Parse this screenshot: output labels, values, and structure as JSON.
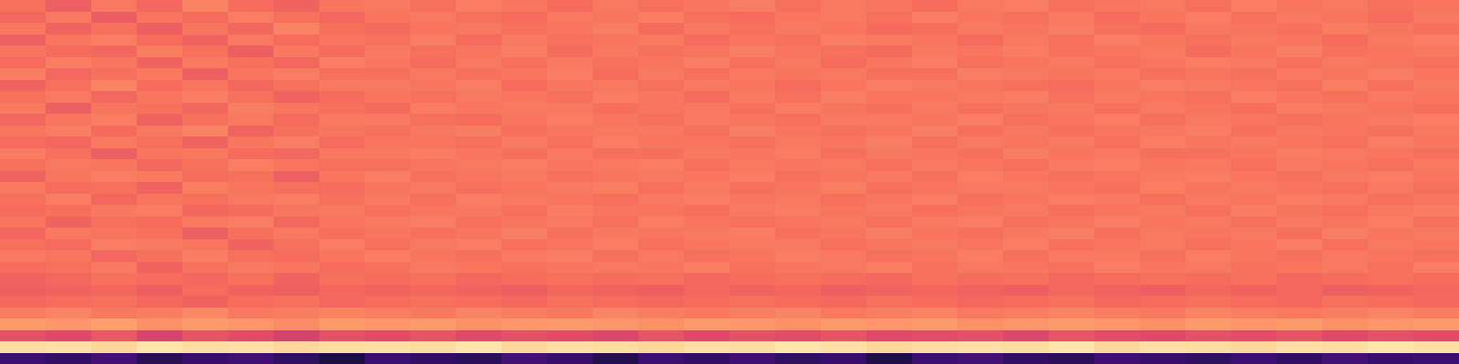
{
  "chart_data": {
    "type": "heatmap",
    "tick_labels": false,
    "zlim": [
      0,
      100
    ],
    "cells": [
      [
        70,
        66,
        72,
        68,
        74,
        69,
        67,
        71,
        72,
        70,
        73,
        71,
        69,
        72,
        70,
        71,
        73,
        70,
        72,
        71,
        69,
        72,
        73,
        70,
        71,
        72,
        70,
        73,
        71,
        72,
        70,
        71
      ],
      [
        68,
        72,
        65,
        71,
        69,
        73,
        70,
        68,
        71,
        72,
        70,
        69,
        72,
        71,
        73,
        70,
        69,
        71,
        72,
        70,
        73,
        71,
        70,
        72,
        69,
        71,
        73,
        70,
        72,
        71,
        69,
        72
      ],
      [
        72,
        67,
        70,
        66,
        71,
        68,
        74,
        70,
        69,
        71,
        72,
        70,
        71,
        73,
        69,
        72,
        70,
        72,
        71,
        69,
        70,
        72,
        71,
        73,
        70,
        69,
        72,
        71,
        70,
        73,
        71,
        70
      ],
      [
        66,
        71,
        73,
        69,
        67,
        72,
        69,
        71,
        70,
        73,
        69,
        72,
        70,
        71,
        72,
        69,
        71,
        70,
        73,
        72,
        71,
        69,
        72,
        70,
        73,
        71,
        70,
        72,
        71,
        69,
        72,
        73
      ],
      [
        71,
        69,
        68,
        73,
        70,
        66,
        72,
        69,
        72,
        70,
        71,
        73,
        69,
        72,
        70,
        71,
        73,
        71,
        70,
        69,
        72,
        71,
        73,
        70,
        71,
        72,
        69,
        71,
        73,
        70,
        71,
        72
      ],
      [
        69,
        73,
        71,
        67,
        72,
        70,
        68,
        73,
        71,
        69,
        72,
        70,
        72,
        70,
        71,
        73,
        70,
        72,
        69,
        71,
        73,
        70,
        71,
        72,
        70,
        71,
        73,
        72,
        70,
        72,
        71,
        70
      ],
      [
        73,
        68,
        70,
        72,
        66,
        71,
        73,
        70,
        70,
        72,
        70,
        71,
        73,
        69,
        72,
        70,
        72,
        71,
        72,
        70,
        70,
        73,
        72,
        71,
        72,
        70,
        71,
        70,
        72,
        71,
        73,
        71
      ],
      [
        67,
        70,
        74,
        69,
        71,
        68,
        70,
        72,
        72,
        71,
        73,
        69,
        71,
        72,
        70,
        72,
        71,
        69,
        71,
        73,
        72,
        71,
        70,
        69,
        71,
        73,
        72,
        71,
        70,
        73,
        70,
        72
      ],
      [
        70,
        72,
        68,
        71,
        73,
        70,
        67,
        69,
        71,
        70,
        72,
        71,
        70,
        73,
        71,
        69,
        72,
        70,
        73,
        71,
        71,
        72,
        73,
        70,
        72,
        71,
        70,
        73,
        71,
        70,
        72,
        71
      ],
      [
        72,
        66,
        71,
        70,
        68,
        73,
        71,
        70,
        69,
        73,
        71,
        72,
        72,
        70,
        71,
        72,
        70,
        73,
        71,
        70,
        72,
        70,
        71,
        72,
        70,
        72,
        71,
        70,
        73,
        72,
        71,
        70
      ],
      [
        68,
        71,
        73,
        67,
        70,
        72,
        69,
        72,
        72,
        70,
        69,
        71,
        73,
        71,
        70,
        72,
        71,
        70,
        72,
        72,
        71,
        73,
        70,
        71,
        73,
        70,
        72,
        71,
        70,
        71,
        72,
        73
      ],
      [
        71,
        73,
        69,
        72,
        74,
        67,
        70,
        71,
        70,
        72,
        73,
        70,
        71,
        72,
        72,
        70,
        73,
        71,
        70,
        71,
        73,
        70,
        72,
        70,
        71,
        72,
        73,
        70,
        72,
        71,
        70,
        72
      ],
      [
        69,
        68,
        72,
        70,
        67,
        71,
        73,
        69,
        71,
        71,
        70,
        72,
        70,
        73,
        71,
        71,
        70,
        72,
        71,
        73,
        70,
        72,
        71,
        72,
        70,
        73,
        71,
        72,
        71,
        70,
        73,
        71
      ],
      [
        73,
        70,
        66,
        71,
        72,
        69,
        68,
        72,
        72,
        73,
        71,
        70,
        72,
        70,
        70,
        72,
        71,
        73,
        70,
        72,
        71,
        70,
        73,
        71,
        72,
        70,
        70,
        71,
        73,
        72,
        71,
        70
      ],
      [
        70,
        72,
        71,
        68,
        70,
        73,
        71,
        70,
        70,
        71,
        72,
        73,
        71,
        72,
        73,
        70,
        72,
        71,
        72,
        70,
        72,
        71,
        70,
        72,
        73,
        71,
        72,
        70,
        72,
        71,
        70,
        72
      ],
      [
        67,
        71,
        73,
        72,
        69,
        70,
        66,
        71,
        73,
        70,
        71,
        72,
        70,
        71,
        72,
        71,
        73,
        70,
        71,
        72,
        70,
        73,
        71,
        70,
        71,
        72,
        73,
        71,
        70,
        72,
        73,
        71
      ],
      [
        72,
        69,
        70,
        67,
        73,
        71,
        70,
        69,
        71,
        72,
        70,
        71,
        72,
        73,
        70,
        72,
        70,
        71,
        73,
        70,
        71,
        72,
        72,
        71,
        70,
        73,
        71,
        72,
        71,
        70,
        72,
        70
      ],
      [
        70,
        73,
        68,
        71,
        70,
        72,
        73,
        70,
        72,
        70,
        73,
        72,
        71,
        70,
        72,
        73,
        71,
        72,
        70,
        71,
        73,
        70,
        71,
        73,
        72,
        70,
        72,
        71,
        73,
        72,
        70,
        71
      ],
      [
        69,
        70,
        72,
        73,
        68,
        69,
        71,
        72,
        70,
        71,
        72,
        70,
        73,
        71,
        71,
        70,
        72,
        73,
        71,
        72,
        70,
        71,
        72,
        70,
        71,
        72,
        70,
        73,
        71,
        70,
        72,
        73
      ],
      [
        71,
        67,
        70,
        69,
        72,
        73,
        68,
        71,
        72,
        73,
        70,
        71,
        72,
        70,
        73,
        71,
        70,
        71,
        72,
        70,
        72,
        73,
        70,
        71,
        73,
        71,
        72,
        70,
        72,
        71,
        73,
        70
      ],
      [
        68,
        72,
        71,
        70,
        66,
        70,
        72,
        70,
        71,
        70,
        71,
        73,
        70,
        72,
        71,
        72,
        73,
        70,
        71,
        73,
        71,
        70,
        72,
        73,
        70,
        72,
        71,
        72,
        70,
        73,
        71,
        72
      ],
      [
        70,
        69,
        73,
        72,
        71,
        67,
        70,
        73,
        70,
        72,
        73,
        70,
        71,
        73,
        70,
        71,
        72,
        72,
        70,
        71,
        72,
        71,
        73,
        70,
        71,
        72,
        70,
        71,
        73,
        70,
        72,
        71
      ],
      [
        72,
        71,
        68,
        70,
        73,
        70,
        69,
        71,
        73,
        71,
        70,
        72,
        73,
        70,
        72,
        70,
        71,
        73,
        72,
        70,
        71,
        73,
        70,
        72,
        72,
        70,
        73,
        71,
        70,
        72,
        71,
        70
      ],
      [
        69,
        70,
        72,
        67,
        70,
        72,
        71,
        69,
        70,
        72,
        71,
        70,
        71,
        72,
        71,
        73,
        70,
        71,
        72,
        73,
        70,
        72,
        71,
        70,
        73,
        71,
        72,
        70,
        71,
        72,
        70,
        73
      ],
      [
        67,
        68,
        70,
        69,
        68,
        70,
        67,
        70,
        69,
        70,
        68,
        69,
        70,
        69,
        70,
        68,
        69,
        70,
        69,
        68,
        70,
        69,
        70,
        68,
        69,
        70,
        69,
        70,
        68,
        69,
        70,
        69
      ],
      [
        66,
        67,
        68,
        66,
        69,
        67,
        66,
        68,
        67,
        68,
        67,
        66,
        68,
        67,
        66,
        68,
        67,
        68,
        66,
        67,
        68,
        67,
        66,
        68,
        67,
        66,
        68,
        67,
        68,
        66,
        67,
        68
      ],
      [
        68,
        69,
        70,
        68,
        67,
        69,
        70,
        68,
        69,
        70,
        69,
        68,
        70,
        69,
        68,
        69,
        70,
        69,
        68,
        70,
        69,
        68,
        69,
        70,
        68,
        69,
        70,
        69,
        68,
        70,
        69,
        68
      ],
      [
        73,
        74,
        72,
        73,
        75,
        72,
        73,
        74,
        73,
        72,
        74,
        73,
        72,
        74,
        73,
        72,
        73,
        74,
        72,
        73,
        74,
        72,
        73,
        74,
        73,
        72,
        74,
        73,
        72,
        73,
        74,
        73
      ],
      [
        79,
        78,
        80,
        77,
        79,
        78,
        76,
        79,
        78,
        79,
        77,
        78,
        79,
        78,
        77,
        79,
        78,
        77,
        79,
        78,
        79,
        77,
        78,
        79,
        78,
        77,
        79,
        78,
        79,
        77,
        78,
        79
      ],
      [
        62,
        60,
        64,
        58,
        63,
        61,
        57,
        62,
        61,
        63,
        60,
        62,
        61,
        59,
        63,
        60,
        62,
        61,
        63,
        60,
        61,
        62,
        59,
        63,
        61,
        60,
        62,
        61,
        63,
        60,
        62,
        61
      ],
      [
        93,
        94,
        92,
        95,
        93,
        94,
        92,
        93,
        94,
        93,
        95,
        92,
        94,
        93,
        92,
        94,
        93,
        95,
        94,
        92,
        93,
        94,
        93,
        95,
        92,
        94,
        93,
        92,
        94,
        93,
        95,
        94
      ],
      [
        20,
        18,
        22,
        15,
        19,
        21,
        17,
        12,
        20,
        18,
        16,
        22,
        19,
        14,
        20,
        18,
        21,
        17,
        19,
        13,
        20,
        22,
        18,
        16,
        21,
        19,
        17,
        20,
        18,
        22,
        19,
        20
      ]
    ]
  }
}
